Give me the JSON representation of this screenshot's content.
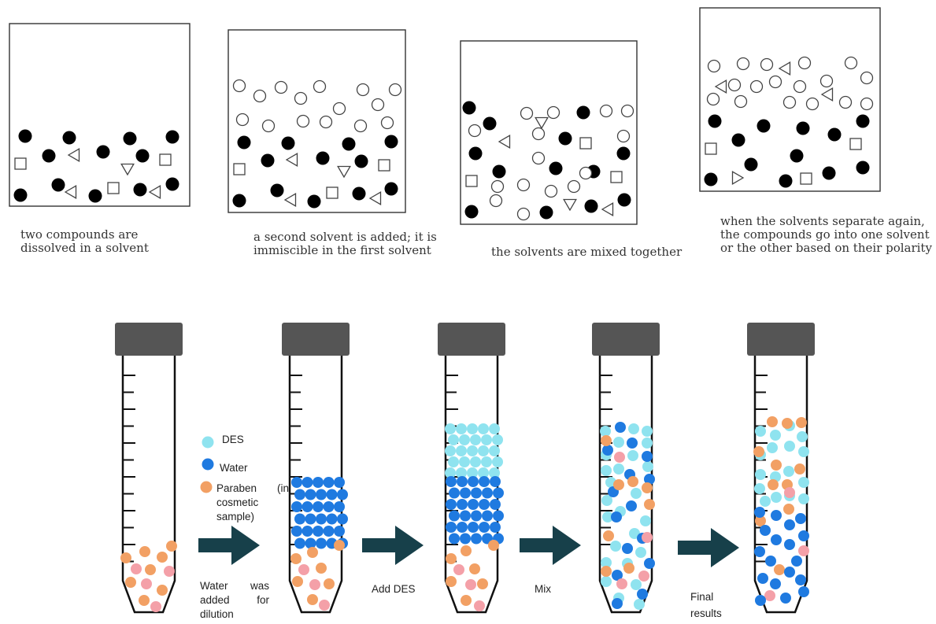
{
  "top_panels": [
    {
      "caption_lines": [
        "two compounds are",
        "dissolved in a solvent"
      ]
    },
    {
      "caption_lines": [
        "a second solvent is added; it is",
        "immiscible in the first solvent"
      ]
    },
    {
      "caption_lines": [
        "the solvents are mixed together"
      ]
    },
    {
      "caption_lines": [
        "when the solvents separate again,",
        "the compounds go into one solvent",
        "or the other based on their polarity"
      ]
    }
  ],
  "legend": [
    {
      "label": "DES",
      "color": "#8fe3ef"
    },
    {
      "label": "Water",
      "color": "#1f7ae0"
    },
    {
      "label": "Paraben (in cosmetic sample)",
      "color": "#f2a064"
    }
  ],
  "paraben_alt_color": "#f4a0a8",
  "steps": [
    {
      "label_lines": [
        "Water was",
        "added for",
        "dilution"
      ]
    },
    {
      "label_lines": [
        "Add DES"
      ]
    },
    {
      "label_lines": [
        "Mix"
      ]
    },
    {
      "label_lines": [
        "Final",
        "results"
      ]
    }
  ],
  "colors": {
    "cap": "#555555",
    "arrow": "#17404a",
    "filled": "#000000",
    "outline": "#444444"
  }
}
